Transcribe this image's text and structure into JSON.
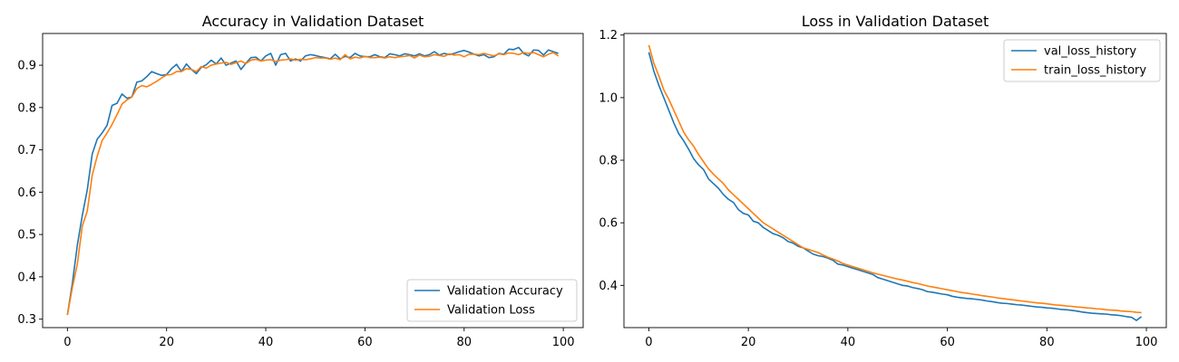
{
  "chart_data": [
    {
      "type": "line",
      "title": "Accuracy in Validation Dataset",
      "xlabel": "",
      "ylabel": "",
      "xlim": [
        -5,
        104
      ],
      "ylim": [
        0.28,
        0.975
      ],
      "xticks": [
        0,
        20,
        40,
        60,
        80,
        100
      ],
      "yticks": [
        0.3,
        0.4,
        0.5,
        0.6,
        0.7,
        0.8,
        0.9
      ],
      "ytick_decimals": 1,
      "legend_position": "lower right",
      "grid": false,
      "series": [
        {
          "name": "Validation Accuracy",
          "color": "#1f77b4",
          "values": [
            0.31,
            0.385,
            0.475,
            0.545,
            0.605,
            0.69,
            0.725,
            0.74,
            0.758,
            0.805,
            0.81,
            0.832,
            0.822,
            0.825,
            0.86,
            0.863,
            0.873,
            0.885,
            0.88,
            0.876,
            0.878,
            0.892,
            0.902,
            0.885,
            0.903,
            0.89,
            0.88,
            0.895,
            0.901,
            0.912,
            0.903,
            0.917,
            0.9,
            0.905,
            0.91,
            0.89,
            0.905,
            0.918,
            0.919,
            0.91,
            0.922,
            0.928,
            0.9,
            0.925,
            0.928,
            0.91,
            0.915,
            0.91,
            0.922,
            0.925,
            0.923,
            0.92,
            0.918,
            0.915,
            0.926,
            0.915,
            0.921,
            0.918,
            0.928,
            0.922,
            0.92,
            0.92,
            0.925,
            0.92,
            0.918,
            0.927,
            0.925,
            0.922,
            0.927,
            0.925,
            0.922,
            0.927,
            0.922,
            0.925,
            0.932,
            0.924,
            0.928,
            0.925,
            0.928,
            0.932,
            0.935,
            0.931,
            0.926,
            0.922,
            0.925,
            0.918,
            0.92,
            0.928,
            0.926,
            0.938,
            0.937,
            0.942,
            0.928,
            0.922,
            0.936,
            0.935,
            0.924,
            0.936,
            0.932,
            0.928
          ]
        },
        {
          "name": "Validation Loss",
          "color": "#ff7f0e",
          "values": [
            0.31,
            0.375,
            0.43,
            0.52,
            0.555,
            0.64,
            0.685,
            0.722,
            0.74,
            0.76,
            0.783,
            0.808,
            0.818,
            0.825,
            0.845,
            0.852,
            0.849,
            0.855,
            0.862,
            0.87,
            0.877,
            0.878,
            0.885,
            0.885,
            0.892,
            0.89,
            0.885,
            0.897,
            0.893,
            0.9,
            0.903,
            0.905,
            0.907,
            0.902,
            0.906,
            0.91,
            0.904,
            0.912,
            0.914,
            0.91,
            0.912,
            0.913,
            0.909,
            0.912,
            0.913,
            0.915,
            0.912,
            0.914,
            0.913,
            0.915,
            0.918,
            0.917,
            0.917,
            0.914,
            0.917,
            0.913,
            0.925,
            0.915,
            0.919,
            0.917,
            0.921,
            0.918,
            0.918,
            0.919,
            0.917,
            0.92,
            0.918,
            0.92,
            0.921,
            0.923,
            0.917,
            0.924,
            0.92,
            0.921,
            0.925,
            0.923,
            0.921,
            0.927,
            0.924,
            0.925,
            0.92,
            0.926,
            0.926,
            0.925,
            0.928,
            0.925,
            0.922,
            0.927,
            0.925,
            0.929,
            0.928,
            0.925,
            0.93,
            0.928,
            0.93,
            0.925,
            0.92,
            0.926,
            0.93,
            0.922
          ]
        }
      ]
    },
    {
      "type": "line",
      "title": "Loss in Validation Dataset",
      "xlabel": "",
      "ylabel": "",
      "xlim": [
        -5,
        104
      ],
      "ylim": [
        0.265,
        1.205
      ],
      "xticks": [
        0,
        20,
        40,
        60,
        80,
        100
      ],
      "yticks": [
        0.4,
        0.6,
        0.8,
        1.0,
        1.2
      ],
      "ytick_decimals": 1,
      "legend_position": "upper right",
      "grid": false,
      "series": [
        {
          "name": "val_loss_history",
          "color": "#1f77b4",
          "values": [
            1.145,
            1.085,
            1.04,
            1.0,
            0.96,
            0.92,
            0.885,
            0.862,
            0.835,
            0.805,
            0.785,
            0.77,
            0.74,
            0.725,
            0.71,
            0.69,
            0.675,
            0.665,
            0.642,
            0.63,
            0.625,
            0.605,
            0.6,
            0.585,
            0.575,
            0.565,
            0.56,
            0.552,
            0.54,
            0.535,
            0.525,
            0.52,
            0.51,
            0.5,
            0.495,
            0.492,
            0.487,
            0.48,
            0.468,
            0.465,
            0.46,
            0.455,
            0.45,
            0.445,
            0.44,
            0.435,
            0.425,
            0.42,
            0.415,
            0.41,
            0.405,
            0.4,
            0.398,
            0.393,
            0.39,
            0.386,
            0.38,
            0.378,
            0.375,
            0.372,
            0.37,
            0.365,
            0.362,
            0.36,
            0.358,
            0.357,
            0.355,
            0.353,
            0.35,
            0.348,
            0.345,
            0.343,
            0.342,
            0.34,
            0.338,
            0.337,
            0.335,
            0.333,
            0.331,
            0.33,
            0.328,
            0.327,
            0.325,
            0.323,
            0.322,
            0.32,
            0.318,
            0.315,
            0.313,
            0.311,
            0.31,
            0.309,
            0.308,
            0.306,
            0.305,
            0.303,
            0.3,
            0.298,
            0.288,
            0.3
          ]
        },
        {
          "name": "train_loss_history",
          "color": "#ff7f0e",
          "values": [
            1.168,
            1.11,
            1.07,
            1.025,
            0.995,
            0.96,
            0.925,
            0.89,
            0.865,
            0.845,
            0.818,
            0.795,
            0.772,
            0.755,
            0.74,
            0.725,
            0.705,
            0.69,
            0.675,
            0.66,
            0.645,
            0.63,
            0.615,
            0.6,
            0.59,
            0.58,
            0.57,
            0.56,
            0.55,
            0.54,
            0.53,
            0.52,
            0.515,
            0.51,
            0.505,
            0.497,
            0.49,
            0.484,
            0.478,
            0.47,
            0.465,
            0.46,
            0.455,
            0.45,
            0.445,
            0.44,
            0.436,
            0.432,
            0.428,
            0.424,
            0.42,
            0.417,
            0.413,
            0.409,
            0.406,
            0.402,
            0.398,
            0.395,
            0.392,
            0.389,
            0.386,
            0.383,
            0.38,
            0.377,
            0.375,
            0.372,
            0.37,
            0.367,
            0.365,
            0.363,
            0.36,
            0.358,
            0.356,
            0.354,
            0.352,
            0.35,
            0.348,
            0.346,
            0.344,
            0.343,
            0.341,
            0.339,
            0.337,
            0.336,
            0.334,
            0.333,
            0.331,
            0.33,
            0.328,
            0.327,
            0.325,
            0.324,
            0.322,
            0.321,
            0.32,
            0.318,
            0.317,
            0.316,
            0.314,
            0.313
          ]
        }
      ]
    }
  ]
}
